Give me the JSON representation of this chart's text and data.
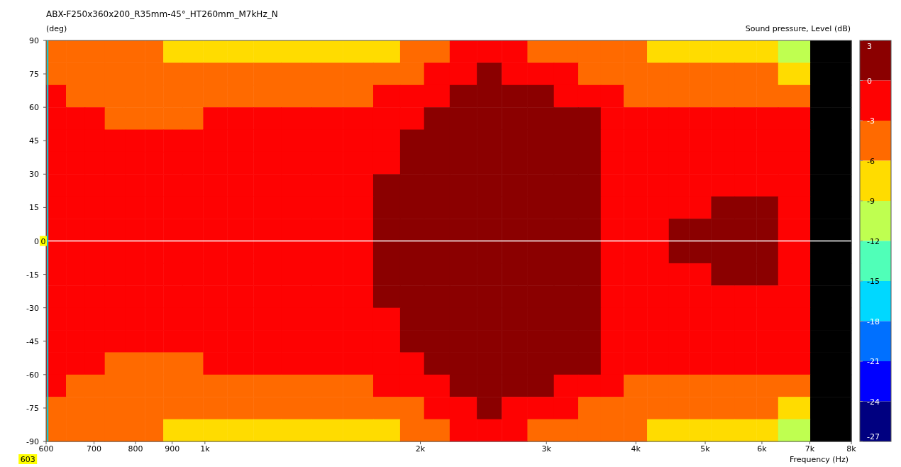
{
  "chart_data": {
    "type": "heatmap",
    "title": "ABX-F250x360x200_R35mm-45°_HT260mm_M7kHz_N",
    "ylabel": "(deg)",
    "xlabel": "Frequency  (Hz)",
    "clabel": "Sound pressure, Level  (dB)",
    "log": "x",
    "xlim": [
      600,
      8000
    ],
    "xticks": [
      600,
      700,
      800,
      900,
      {
        "value": 1000,
        "label": "1k"
      },
      {
        "value": 2000,
        "label": "2k"
      },
      {
        "value": 3000,
        "label": "3k"
      },
      {
        "value": 4000,
        "label": "4k"
      },
      {
        "value": 5000,
        "label": "5k"
      },
      {
        "value": 6000,
        "label": "6k"
      },
      {
        "value": 7000,
        "label": "7k"
      },
      {
        "value": 8000,
        "label": "8k"
      }
    ],
    "ylim": [
      -90,
      90
    ],
    "yticks": [
      -90,
      -75,
      -60,
      -45,
      -30,
      -15,
      0,
      15,
      30,
      45,
      60,
      75,
      90
    ],
    "clim": [
      -27,
      3
    ],
    "cticks": [
      3,
      0,
      -3,
      -6,
      -9,
      -12,
      -15,
      -18,
      -21,
      -24,
      -27
    ],
    "x": [
      620,
      660,
      700,
      750,
      800,
      850,
      900,
      960,
      1030,
      1120,
      1220,
      1340,
      1480,
      1640,
      1800,
      1950,
      2100,
      2300,
      2500,
      2700,
      2950,
      3200,
      3450,
      3700,
      4000,
      4300,
      4600,
      4900,
      5300,
      5700,
      6100,
      6550,
      7500
    ],
    "cells": [
      [
        -4.5,
        -4.5,
        -4.5,
        -4.5,
        -4.5,
        -4.5,
        -7.5,
        -7.5,
        -7.5,
        -7.5,
        -7.5,
        -7.5,
        -7.5,
        -7.5,
        -7.5,
        -4.5,
        -4.5,
        -1.5,
        -1.5,
        -1.5,
        -4.5,
        -4.5,
        -4.5,
        -4.5,
        -4.5,
        -7.5,
        -7.5,
        -7.5,
        -7.5,
        -7.5,
        -7.5,
        -10.5,
        null
      ],
      [
        -4.5,
        -4.5,
        -4.5,
        -4.5,
        -4.5,
        -4.5,
        -4.5,
        -4.5,
        -4.5,
        -4.5,
        -4.5,
        -4.5,
        -4.5,
        -4.5,
        -4.5,
        -4.5,
        -1.5,
        -1.5,
        1.5,
        -1.5,
        -1.5,
        -1.5,
        -4.5,
        -4.5,
        -4.5,
        -4.5,
        -4.5,
        -4.5,
        -4.5,
        -4.5,
        -4.5,
        -7.5,
        null
      ],
      [
        -1.5,
        -4.5,
        -4.5,
        -4.5,
        -4.5,
        -4.5,
        -4.5,
        -4.5,
        -4.5,
        -4.5,
        -4.5,
        -4.5,
        -4.5,
        -4.5,
        -1.5,
        -1.5,
        -1.5,
        1.5,
        1.5,
        1.5,
        1.5,
        -1.5,
        -1.5,
        -1.5,
        -4.5,
        -4.5,
        -4.5,
        -4.5,
        -4.5,
        -4.5,
        -4.5,
        -4.5,
        null
      ],
      [
        -1.5,
        -1.5,
        -1.5,
        -4.5,
        -4.5,
        -4.5,
        -4.5,
        -4.5,
        -1.5,
        -1.5,
        -1.5,
        -1.5,
        -1.5,
        -1.5,
        -1.5,
        -1.5,
        1.5,
        1.5,
        1.5,
        1.5,
        1.5,
        1.5,
        1.5,
        -1.5,
        -1.5,
        -1.5,
        -1.5,
        -1.5,
        -1.5,
        -1.5,
        -1.5,
        -1.5,
        null
      ],
      [
        -1.5,
        -1.5,
        -1.5,
        -1.5,
        -1.5,
        -1.5,
        -1.5,
        -1.5,
        -1.5,
        -1.5,
        -1.5,
        -1.5,
        -1.5,
        -1.5,
        -1.5,
        1.5,
        1.5,
        1.5,
        1.5,
        1.5,
        1.5,
        1.5,
        1.5,
        -1.5,
        -1.5,
        -1.5,
        -1.5,
        -1.5,
        -1.5,
        -1.5,
        -1.5,
        -1.5,
        null
      ],
      [
        -1.5,
        -1.5,
        -1.5,
        -1.5,
        -1.5,
        -1.5,
        -1.5,
        -1.5,
        -1.5,
        -1.5,
        -1.5,
        -1.5,
        -1.5,
        -1.5,
        -1.5,
        1.5,
        1.5,
        1.5,
        1.5,
        1.5,
        1.5,
        1.5,
        1.5,
        -1.5,
        -1.5,
        -1.5,
        -1.5,
        -1.5,
        -1.5,
        -1.5,
        -1.5,
        -1.5,
        null
      ],
      [
        -1.5,
        -1.5,
        -1.5,
        -1.5,
        -1.5,
        -1.5,
        -1.5,
        -1.5,
        -1.5,
        -1.5,
        -1.5,
        -1.5,
        -1.5,
        -1.5,
        1.5,
        1.5,
        1.5,
        1.5,
        1.5,
        1.5,
        1.5,
        1.5,
        1.5,
        -1.5,
        -1.5,
        -1.5,
        -1.5,
        -1.5,
        -1.5,
        -1.5,
        -1.5,
        -1.5,
        null
      ],
      [
        -1.5,
        -1.5,
        -1.5,
        -1.5,
        -1.5,
        -1.5,
        -1.5,
        -1.5,
        -1.5,
        -1.5,
        -1.5,
        -1.5,
        -1.5,
        -1.5,
        1.5,
        1.5,
        1.5,
        1.5,
        1.5,
        1.5,
        1.5,
        1.5,
        1.5,
        -1.5,
        -1.5,
        -1.5,
        -1.5,
        -1.5,
        1.5,
        1.5,
        1.5,
        -1.5,
        null
      ],
      [
        -1.5,
        -1.5,
        -1.5,
        -1.5,
        -1.5,
        -1.5,
        -1.5,
        -1.5,
        -1.5,
        -1.5,
        -1.5,
        -1.5,
        -1.5,
        -1.5,
        1.5,
        1.5,
        1.5,
        1.5,
        1.5,
        1.5,
        1.5,
        1.5,
        1.5,
        -1.5,
        -1.5,
        -1.5,
        1.5,
        1.5,
        1.5,
        1.5,
        1.5,
        -1.5,
        null
      ],
      [
        -1.5,
        -1.5,
        -1.5,
        -1.5,
        -1.5,
        -1.5,
        -1.5,
        -1.5,
        -1.5,
        -1.5,
        -1.5,
        -1.5,
        -1.5,
        -1.5,
        1.5,
        1.5,
        1.5,
        1.5,
        1.5,
        1.5,
        1.5,
        1.5,
        1.5,
        -1.5,
        -1.5,
        -1.5,
        1.5,
        1.5,
        1.5,
        1.5,
        1.5,
        -1.5,
        null
      ],
      [
        -1.5,
        -1.5,
        -1.5,
        -1.5,
        -1.5,
        -1.5,
        -1.5,
        -1.5,
        -1.5,
        -1.5,
        -1.5,
        -1.5,
        -1.5,
        -1.5,
        1.5,
        1.5,
        1.5,
        1.5,
        1.5,
        1.5,
        1.5,
        1.5,
        1.5,
        -1.5,
        -1.5,
        -1.5,
        -1.5,
        -1.5,
        1.5,
        1.5,
        1.5,
        -1.5,
        null
      ],
      [
        -1.5,
        -1.5,
        -1.5,
        -1.5,
        -1.5,
        -1.5,
        -1.5,
        -1.5,
        -1.5,
        -1.5,
        -1.5,
        -1.5,
        -1.5,
        -1.5,
        1.5,
        1.5,
        1.5,
        1.5,
        1.5,
        1.5,
        1.5,
        1.5,
        1.5,
        -1.5,
        -1.5,
        -1.5,
        -1.5,
        -1.5,
        -1.5,
        -1.5,
        -1.5,
        -1.5,
        null
      ],
      [
        -1.5,
        -1.5,
        -1.5,
        -1.5,
        -1.5,
        -1.5,
        -1.5,
        -1.5,
        -1.5,
        -1.5,
        -1.5,
        -1.5,
        -1.5,
        -1.5,
        -1.5,
        1.5,
        1.5,
        1.5,
        1.5,
        1.5,
        1.5,
        1.5,
        1.5,
        -1.5,
        -1.5,
        -1.5,
        -1.5,
        -1.5,
        -1.5,
        -1.5,
        -1.5,
        -1.5,
        null
      ],
      [
        -1.5,
        -1.5,
        -1.5,
        -1.5,
        -1.5,
        -1.5,
        -1.5,
        -1.5,
        -1.5,
        -1.5,
        -1.5,
        -1.5,
        -1.5,
        -1.5,
        -1.5,
        1.5,
        1.5,
        1.5,
        1.5,
        1.5,
        1.5,
        1.5,
        1.5,
        -1.5,
        -1.5,
        -1.5,
        -1.5,
        -1.5,
        -1.5,
        -1.5,
        -1.5,
        -1.5,
        null
      ],
      [
        -1.5,
        -1.5,
        -1.5,
        -4.5,
        -4.5,
        -4.5,
        -4.5,
        -4.5,
        -1.5,
        -1.5,
        -1.5,
        -1.5,
        -1.5,
        -1.5,
        -1.5,
        -1.5,
        1.5,
        1.5,
        1.5,
        1.5,
        1.5,
        1.5,
        1.5,
        -1.5,
        -1.5,
        -1.5,
        -1.5,
        -1.5,
        -1.5,
        -1.5,
        -1.5,
        -1.5,
        null
      ],
      [
        -1.5,
        -4.5,
        -4.5,
        -4.5,
        -4.5,
        -4.5,
        -4.5,
        -4.5,
        -4.5,
        -4.5,
        -4.5,
        -4.5,
        -4.5,
        -4.5,
        -1.5,
        -1.5,
        -1.5,
        1.5,
        1.5,
        1.5,
        1.5,
        -1.5,
        -1.5,
        -1.5,
        -4.5,
        -4.5,
        -4.5,
        -4.5,
        -4.5,
        -4.5,
        -4.5,
        -4.5,
        null
      ],
      [
        -4.5,
        -4.5,
        -4.5,
        -4.5,
        -4.5,
        -4.5,
        -4.5,
        -4.5,
        -4.5,
        -4.5,
        -4.5,
        -4.5,
        -4.5,
        -4.5,
        -4.5,
        -4.5,
        -1.5,
        -1.5,
        1.5,
        -1.5,
        -1.5,
        -1.5,
        -4.5,
        -4.5,
        -4.5,
        -4.5,
        -4.5,
        -4.5,
        -4.5,
        -4.5,
        -4.5,
        -7.5,
        null
      ],
      [
        -4.5,
        -4.5,
        -4.5,
        -4.5,
        -4.5,
        -4.5,
        -7.5,
        -7.5,
        -7.5,
        -7.5,
        -7.5,
        -7.5,
        -7.5,
        -7.5,
        -7.5,
        -4.5,
        -4.5,
        -1.5,
        -1.5,
        -1.5,
        -4.5,
        -4.5,
        -4.5,
        -4.5,
        -4.5,
        -7.5,
        -7.5,
        -7.5,
        -7.5,
        -7.5,
        -7.5,
        -10.5,
        null
      ]
    ],
    "ref_lines": [
      {
        "axis": "y",
        "value": 0,
        "label": "0",
        "color": "#ffffff"
      },
      {
        "axis": "x",
        "value": 603,
        "label": "603",
        "color": "#00d0e0"
      }
    ]
  }
}
